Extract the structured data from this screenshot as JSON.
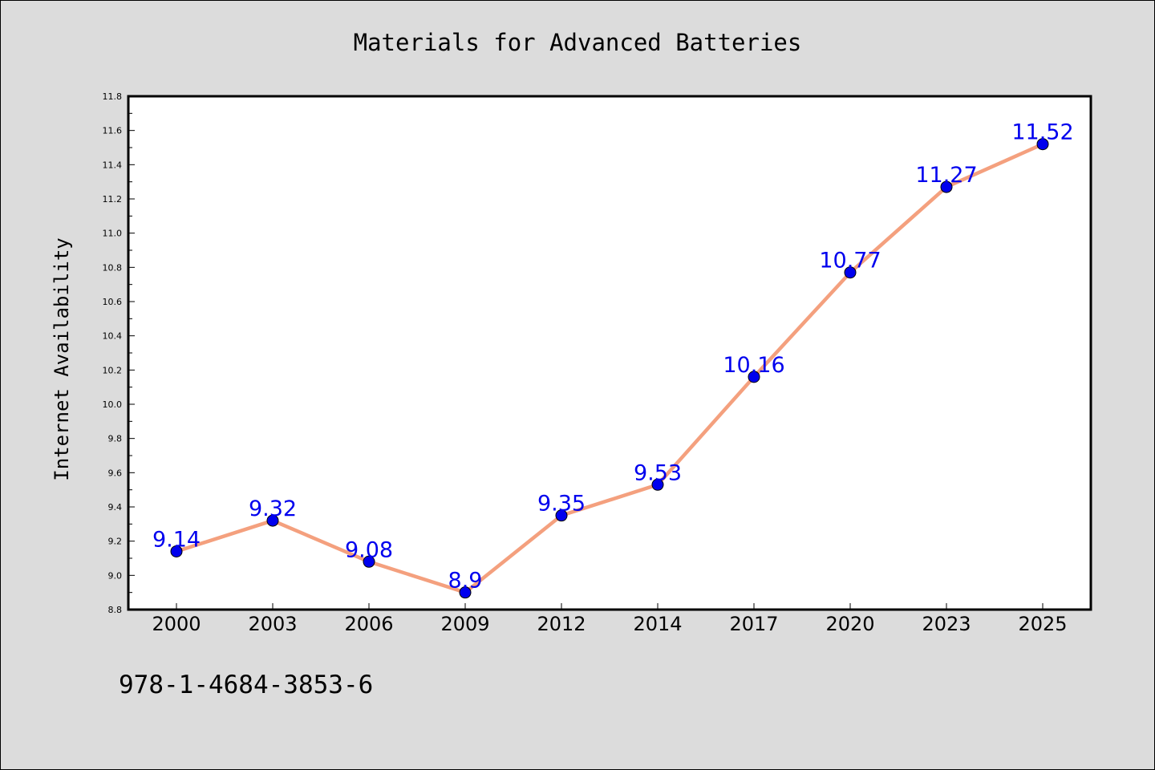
{
  "chart_data": {
    "type": "line",
    "title": "Materials for Advanced Batteries",
    "xlabel": "",
    "ylabel": "Internet Availability",
    "categories": [
      "2000",
      "2003",
      "2006",
      "2009",
      "2012",
      "2014",
      "2017",
      "2020",
      "2023",
      "2025"
    ],
    "series": [
      {
        "values": [
          9.14,
          9.32,
          9.08,
          8.9,
          9.35,
          9.53,
          10.16,
          10.77,
          11.27,
          11.52
        ],
        "data_labels": [
          "9.14",
          "9.32",
          "9.08",
          "8.9",
          "9.35",
          "9.53",
          "10.16",
          "10.77",
          "11.27",
          "11.52"
        ]
      }
    ],
    "ylim": [
      8.8,
      11.8
    ],
    "yticks": [
      "8.8",
      "9.0",
      "9.2",
      "9.4",
      "9.6",
      "9.8",
      "10.0",
      "10.2",
      "10.4",
      "10.6",
      "10.8",
      "11.0",
      "11.2",
      "11.4",
      "11.6",
      "11.8"
    ],
    "grid": false,
    "legend": "none",
    "colors": {
      "line": "#f4a07e",
      "marker": "#0000ee",
      "marker_edge": "#000000",
      "data_label": "#0000ee",
      "plot_background": "#ffffff",
      "figure_background": "#dcdcdc"
    }
  },
  "footer": {
    "text": "978-1-4684-3853-6"
  }
}
